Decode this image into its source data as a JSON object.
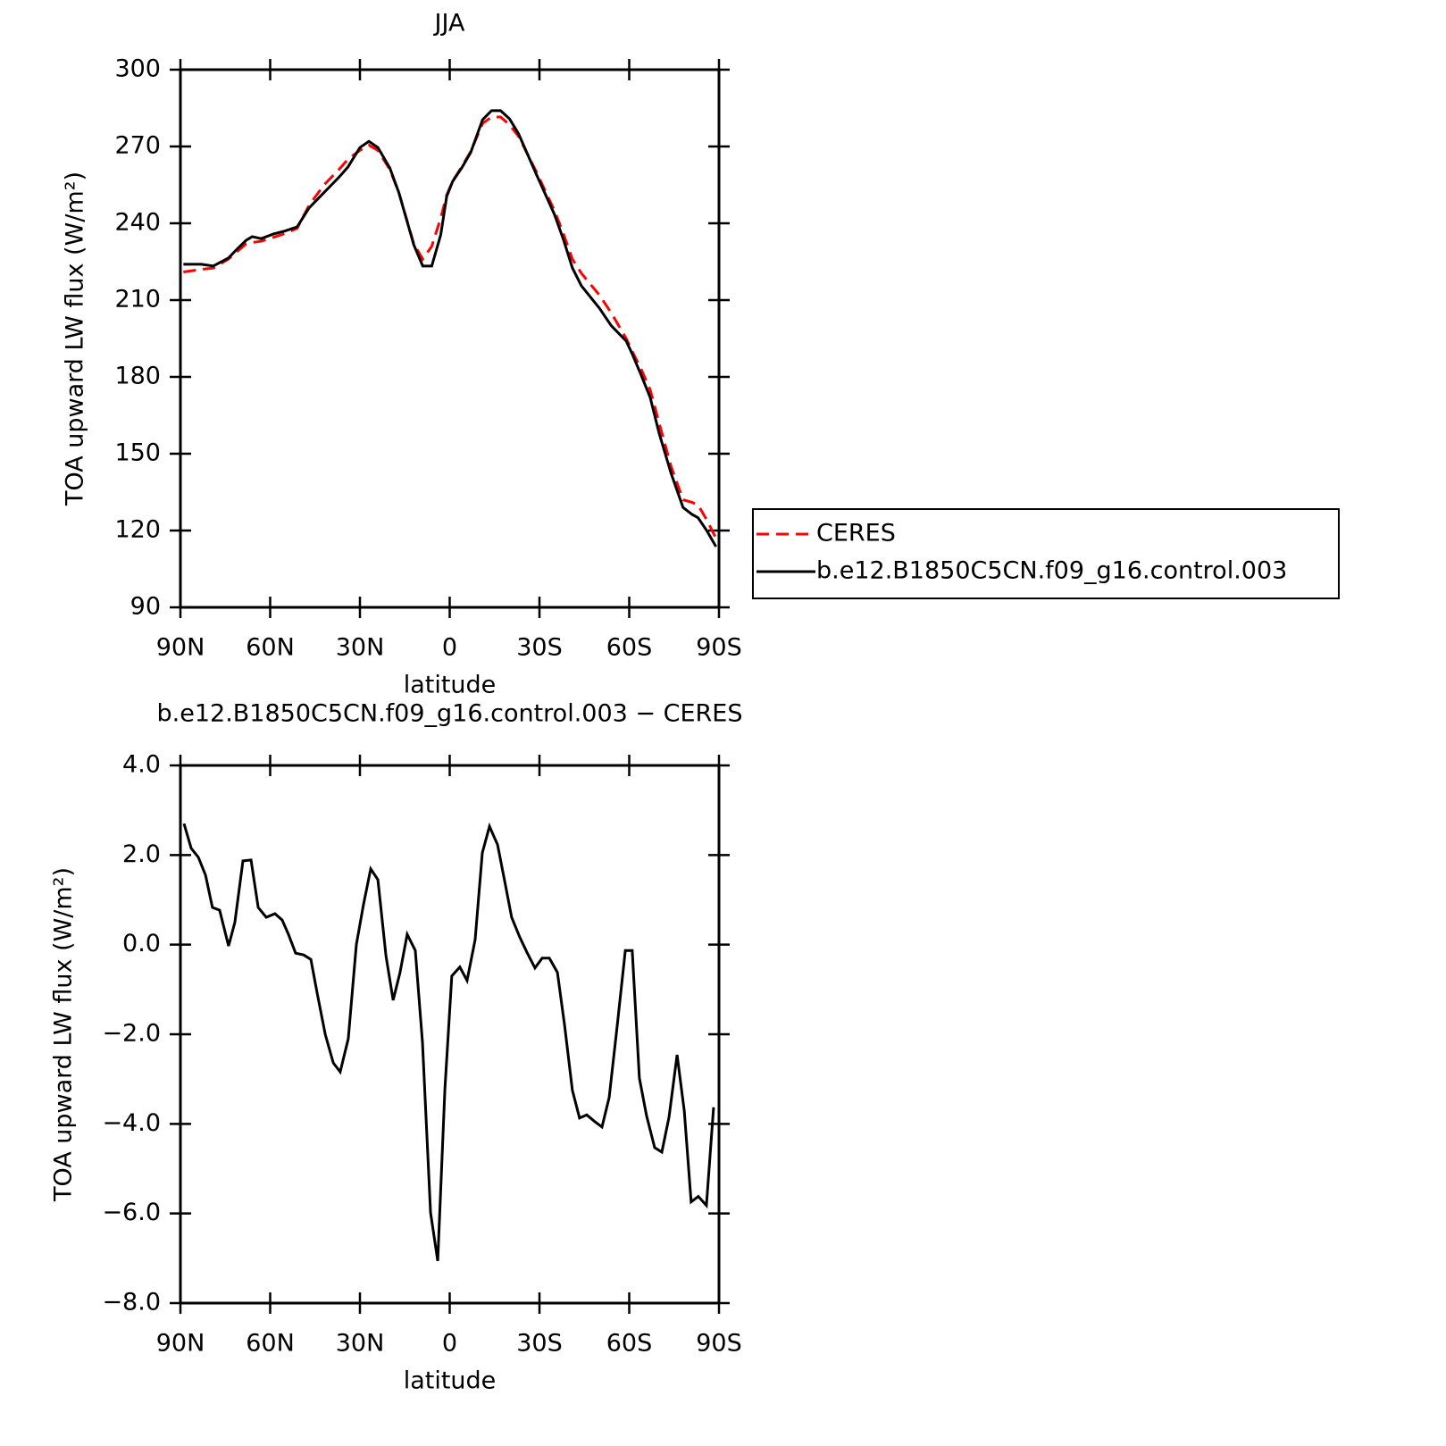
{
  "chart_data": [
    {
      "type": "line",
      "title": "JJA",
      "x_label": "latitude",
      "y_label": "TOA upward LW flux (W/m²)",
      "x": [
        89,
        83,
        79,
        74,
        71,
        68,
        66,
        63,
        59,
        55,
        51,
        47,
        42,
        37,
        34,
        30,
        27,
        24,
        20,
        17,
        12,
        9,
        6,
        3,
        1,
        -1,
        -4,
        -7,
        -11,
        -14,
        -17,
        -20,
        -23,
        -29,
        -35,
        -38,
        -41,
        -44,
        -50,
        -54,
        -59,
        -61,
        -64,
        -67,
        -70,
        -74,
        -78,
        -81,
        -83,
        -86,
        -89
      ],
      "series": [
        {
          "name": "CERES",
          "color": "#ff0000",
          "dash": "dashed",
          "values": [
            221,
            222,
            222.5,
            226,
            229,
            232,
            232.5,
            233,
            234.5,
            236,
            238,
            247,
            255,
            261,
            265,
            268.5,
            270.5,
            268.5,
            261,
            252,
            232,
            226,
            231,
            242,
            251,
            256.5,
            262,
            268,
            279,
            281.5,
            281.5,
            278.5,
            274,
            260,
            245,
            236,
            226,
            220.5,
            212,
            205,
            195,
            190,
            183,
            175,
            162,
            145,
            132,
            131,
            130,
            124,
            117
          ]
        },
        {
          "name": "b.e12.B1850C5CN.f09_g16.control.003",
          "color": "#000000",
          "dash": "solid",
          "values": [
            224,
            224,
            223.3,
            226.4,
            230,
            233.4,
            234.8,
            234,
            235.8,
            237,
            238.6,
            246,
            252,
            258,
            262,
            269.6,
            272,
            269.6,
            261.6,
            252,
            231.6,
            223.3,
            223.3,
            235.5,
            250.5,
            256.4,
            261.6,
            267.6,
            280.5,
            284,
            284,
            280.8,
            275,
            259,
            243.5,
            233.7,
            222.6,
            215.6,
            206.9,
            200,
            194,
            189,
            180.7,
            172,
            158,
            142.3,
            129,
            126.3,
            125,
            119.8,
            113.7
          ]
        }
      ],
      "xlim": [
        90,
        -90
      ],
      "xticks": [
        {
          "value": 90,
          "label": "90N"
        },
        {
          "value": 60,
          "label": "60N"
        },
        {
          "value": 30,
          "label": "30N"
        },
        0,
        {
          "value": -30,
          "label": "30S"
        },
        {
          "value": -60,
          "label": "60S"
        },
        {
          "value": -90,
          "label": "90S"
        }
      ],
      "ylim": [
        90,
        300
      ],
      "yticks": [
        90,
        120,
        150,
        180,
        210,
        240,
        270,
        300
      ],
      "legend": "right"
    },
    {
      "type": "line",
      "title": "b.e12.B1850C5CN.f09_g16.control.003 − CERES",
      "x_label": "latitude",
      "y_label": "TOA upward LW flux (W/m²)",
      "x": [
        88.8,
        86.4,
        84,
        81.6,
        79.3,
        76.9,
        73.9,
        71.8,
        69.1,
        66.4,
        64,
        61.3,
        58.4,
        56,
        53.9,
        51.5,
        48.8,
        46.4,
        44.3,
        41.6,
        38.9,
        36.6,
        33.9,
        31.2,
        28.8,
        26.4,
        24,
        21.3,
        18.9,
        16.6,
        14.2,
        11.5,
        9.1,
        6.4,
        4,
        1.6,
        -0.7,
        -3.4,
        -5.8,
        -8.5,
        -10.9,
        -13.3,
        -16,
        -18.4,
        -20.7,
        -23.4,
        -25.8,
        -28.5,
        -30.9,
        -33.3,
        -36,
        -38.4,
        -41,
        -43.4,
        -45.8,
        -48.5,
        -50.9,
        -53.3,
        -56,
        -58.7,
        -61,
        -63.4,
        -65.8,
        -68.5,
        -70.9,
        -73.3,
        -76,
        -78.4,
        -80.7,
        -83.1,
        -85.8,
        -88.2
      ],
      "series": [
        {
          "color": "#000000",
          "dash": "solid",
          "values": [
            2.7,
            2.15,
            1.95,
            1.55,
            0.83,
            0.77,
            -0.03,
            0.5,
            1.87,
            1.89,
            0.83,
            0.61,
            0.69,
            0.55,
            0.23,
            -0.19,
            -0.23,
            -0.33,
            -1.08,
            -2,
            -2.64,
            -2.84,
            -2.1,
            0,
            0.9,
            1.69,
            1.45,
            -0.25,
            -1.24,
            -0.62,
            0.23,
            -0.13,
            -2.18,
            -5.98,
            -7.06,
            -3.22,
            -0.7,
            -0.5,
            -0.8,
            0.11,
            2.05,
            2.64,
            2.23,
            1.41,
            0.61,
            0.17,
            -0.17,
            -0.52,
            -0.3,
            -0.3,
            -0.62,
            -1.8,
            -3.25,
            -3.87,
            -3.8,
            -3.95,
            -4.07,
            -3.41,
            -1.8,
            -0.13,
            -0.13,
            -2.98,
            -3.82,
            -4.53,
            -4.63,
            -3.85,
            -2.46,
            -3.71,
            -5.74,
            -5.62,
            -5.82,
            -3.63
          ]
        }
      ],
      "xlim": [
        90,
        -90
      ],
      "xticks": [
        {
          "value": 90,
          "label": "90N"
        },
        {
          "value": 60,
          "label": "60N"
        },
        {
          "value": 30,
          "label": "30N"
        },
        0,
        {
          "value": -30,
          "label": "30S"
        },
        {
          "value": -60,
          "label": "60S"
        },
        {
          "value": -90,
          "label": "90S"
        }
      ],
      "ylim": [
        -8,
        4
      ],
      "yticks": [
        {
          "value": -8,
          "label": "−8.0"
        },
        {
          "value": -6,
          "label": "−6.0"
        },
        {
          "value": -4,
          "label": "−4.0"
        },
        {
          "value": -2,
          "label": "−2.0"
        },
        {
          "value": 0,
          "label": "0.0"
        },
        {
          "value": 2,
          "label": "2.0"
        },
        {
          "value": 4,
          "label": "4.0"
        }
      ]
    }
  ]
}
